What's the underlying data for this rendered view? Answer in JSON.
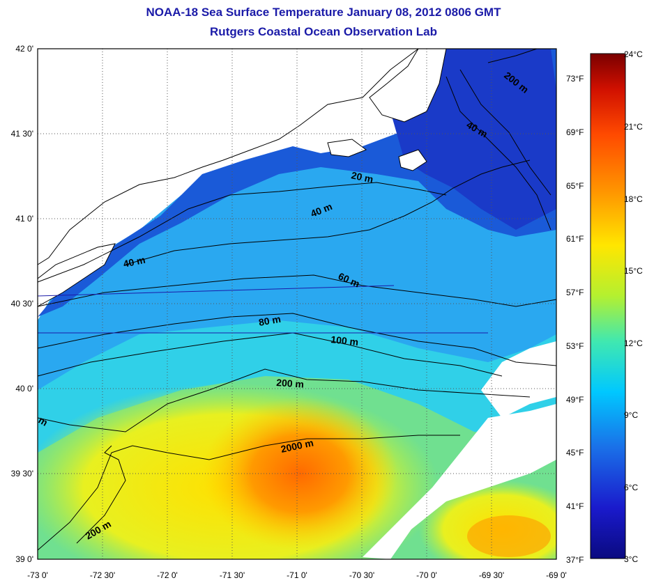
{
  "header": {
    "title_line1": "NOAA-18 Sea Surface Temperature January 08, 2012 0806 GMT",
    "title_line2": "Rutgers Coastal Ocean Observation Lab"
  },
  "map": {
    "lon_ticks": [
      "-73 0'",
      "-72 30'",
      "-72 0'",
      "-71 30'",
      "-71 0'",
      "-70 30'",
      "-70 0'",
      "-69 30'",
      "-69 0'"
    ],
    "lat_ticks": [
      "42 0'",
      "41 30'",
      "41 0'",
      "40 30'",
      "40 0'",
      "39 30'",
      "39 0'"
    ],
    "fahrenheit_ticks": [
      "73°F",
      "69°F",
      "65°F",
      "61°F",
      "57°F",
      "53°F",
      "49°F",
      "45°F",
      "41°F",
      "37°F"
    ],
    "contour_labels": [
      "200 m",
      "40 m",
      "20 m",
      "40 m",
      "40 m",
      "60 m",
      "80 m",
      "100 m",
      "200 m",
      "m",
      "2000 m",
      "200 m"
    ]
  },
  "colorbar": {
    "celsius_ticks": [
      "24°C",
      "21°C",
      "18°C",
      "15°C",
      "12°C",
      "9°C",
      "6°C",
      "3°C"
    ],
    "colors": [
      "#7a0000",
      "#d01000",
      "#ff4a00",
      "#ff9a00",
      "#ffe600",
      "#b4f030",
      "#40e8b0",
      "#00c8ff",
      "#1a70e8",
      "#1a1acc",
      "#0a0a80"
    ]
  }
}
